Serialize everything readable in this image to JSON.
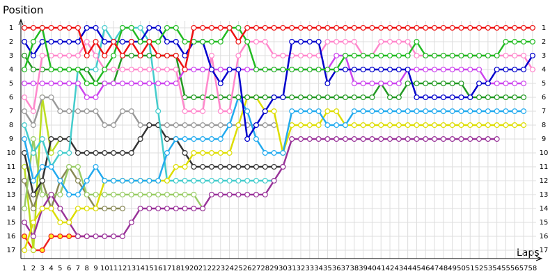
{
  "chart_data": {
    "type": "lap",
    "y_axis_label": "Position",
    "x_axis_label": "Laps",
    "x": [
      1,
      2,
      3,
      4,
      5,
      6,
      7,
      8,
      9,
      10,
      11,
      12,
      13,
      14,
      15,
      16,
      17,
      18,
      19,
      20,
      21,
      22,
      23,
      24,
      25,
      26,
      27,
      28,
      29,
      30,
      31,
      32,
      33,
      34,
      35,
      36,
      37,
      38,
      39,
      40,
      41,
      42,
      43,
      44,
      45,
      46,
      47,
      48,
      49,
      50,
      51,
      52,
      53,
      54,
      55,
      56,
      57,
      58
    ],
    "xlim": [
      0.6,
      58.4
    ],
    "ylim": [
      0.5,
      17.6
    ],
    "y_inverted": true,
    "yticks": [
      1,
      2,
      3,
      4,
      5,
      6,
      7,
      8,
      9,
      10,
      11,
      12,
      13,
      14,
      15,
      16,
      17
    ],
    "grid": true,
    "series": [
      {
        "color": "#ee1111",
        "values": [
          1,
          1,
          1,
          1,
          1,
          1,
          1,
          3,
          2,
          3,
          2,
          3,
          2,
          3,
          2,
          3,
          3,
          3,
          4,
          1,
          1,
          1,
          1,
          1,
          2,
          1,
          1,
          1,
          1,
          1,
          1,
          1,
          1,
          1,
          1,
          1,
          1,
          1,
          1,
          1,
          1,
          1,
          1,
          1,
          1,
          1,
          1,
          1,
          1,
          1,
          1,
          1,
          1,
          1,
          1,
          1,
          1,
          1
        ]
      },
      {
        "color": "#22bb22",
        "values": [
          4,
          2,
          1,
          4,
          4,
          4,
          4,
          5,
          5,
          4,
          3,
          1,
          1,
          2,
          2,
          2,
          1,
          1,
          2,
          2,
          2,
          2,
          2,
          1,
          1,
          2,
          4,
          4,
          4,
          4,
          4,
          4,
          4,
          4,
          4,
          4,
          3,
          3,
          3,
          3,
          3,
          3,
          3,
          3,
          2,
          3,
          3,
          3,
          3,
          3,
          3,
          3,
          3,
          3,
          2,
          2,
          2,
          2
        ]
      },
      {
        "color": "#0000cc",
        "values": [
          2,
          3,
          2,
          2,
          2,
          2,
          2,
          1,
          1,
          2,
          2,
          2,
          2,
          2,
          1,
          1,
          2,
          2,
          3,
          2,
          2,
          4,
          5,
          4,
          4,
          9,
          8,
          7,
          6,
          6,
          2,
          2,
          2,
          2,
          5,
          4,
          4,
          4,
          4,
          4,
          4,
          4,
          4,
          4,
          6,
          6,
          6,
          6,
          6,
          6,
          6,
          5,
          5,
          4,
          4,
          4,
          4,
          3
        ]
      },
      {
        "color": "#ff88cc",
        "values": [
          6,
          7,
          3,
          3,
          3,
          3,
          3,
          2,
          3,
          4,
          4,
          4,
          4,
          4,
          4,
          4,
          4,
          4,
          7,
          7,
          7,
          3,
          7,
          7,
          3,
          2,
          2,
          2,
          3,
          3,
          3,
          3,
          3,
          3,
          2,
          2,
          2,
          2,
          3,
          3,
          2,
          2,
          2,
          2,
          3,
          3,
          3,
          3,
          3,
          3,
          3,
          3,
          3,
          3,
          3,
          3,
          3,
          4
        ]
      },
      {
        "color": "#cc44ee",
        "values": [
          5,
          5,
          5,
          5,
          5,
          5,
          5,
          6,
          6,
          5,
          5,
          5,
          5,
          5,
          5,
          5,
          5,
          5,
          4,
          4,
          4,
          4,
          4,
          4,
          4,
          4,
          4,
          4,
          4,
          4,
          4,
          4,
          4,
          4,
          4,
          3,
          3,
          5,
          5,
          5,
          5,
          5,
          5,
          4,
          4,
          4,
          4,
          4,
          4,
          4,
          4,
          4,
          5,
          5,
          5,
          5,
          5,
          null
        ]
      },
      {
        "color": "#229922",
        "values": [
          3,
          4,
          4,
          4,
          4,
          4,
          4,
          4,
          5,
          5,
          5,
          3,
          3,
          3,
          3,
          3,
          3,
          3,
          6,
          6,
          6,
          6,
          6,
          6,
          6,
          6,
          6,
          6,
          6,
          6,
          6,
          6,
          6,
          6,
          6,
          6,
          6,
          6,
          6,
          6,
          5,
          6,
          6,
          5,
          5,
          5,
          5,
          5,
          5,
          5,
          6,
          6,
          6,
          6,
          6,
          6,
          6,
          null
        ]
      },
      {
        "color": "#22aaee",
        "values": [
          9,
          12,
          11,
          11,
          12,
          13,
          13,
          12,
          11,
          12,
          12,
          12,
          12,
          12,
          12,
          12,
          10,
          9,
          9,
          9,
          9,
          9,
          9,
          8,
          6,
          7,
          9,
          10,
          10,
          10,
          7,
          7,
          7,
          7,
          8,
          8,
          8,
          7,
          7,
          7,
          7,
          7,
          7,
          7,
          7,
          7,
          7,
          7,
          7,
          7,
          7,
          7,
          7,
          7,
          7,
          7,
          7,
          null
        ]
      },
      {
        "color": "#dddd00",
        "values": [
          17,
          15,
          14,
          14,
          15,
          15,
          14,
          14,
          14,
          12,
          12,
          12,
          12,
          12,
          12,
          12,
          12,
          11,
          11,
          10,
          10,
          10,
          10,
          10,
          8,
          6,
          6,
          7,
          7,
          10,
          8,
          8,
          8,
          8,
          7,
          7,
          8,
          8,
          8,
          8,
          8,
          8,
          8,
          8,
          8,
          8,
          8,
          8,
          8,
          8,
          8,
          8,
          8,
          8,
          8,
          8,
          8,
          null
        ]
      },
      {
        "color": "#993399",
        "values": [
          15,
          16,
          14,
          13,
          14,
          15,
          16,
          16,
          16,
          16,
          16,
          16,
          15,
          14,
          14,
          14,
          14,
          14,
          14,
          14,
          14,
          13,
          13,
          13,
          13,
          13,
          13,
          13,
          12,
          11,
          9,
          9,
          9,
          9,
          9,
          9,
          9,
          9,
          9,
          9,
          9,
          9,
          9,
          9,
          9,
          9,
          9,
          9,
          9,
          9,
          9,
          9,
          9,
          9,
          null,
          null,
          null,
          null
        ]
      },
      {
        "color": "#44cccc",
        "values": [
          8,
          10,
          9,
          11,
          10,
          10,
          4,
          4,
          4,
          1,
          2,
          1,
          1,
          1,
          2,
          7,
          12,
          12,
          12,
          12,
          12,
          12,
          12,
          12,
          12,
          12,
          12,
          12,
          12,
          null,
          null,
          null,
          null,
          null,
          null,
          null,
          null,
          null,
          null,
          null,
          null,
          null,
          null,
          null,
          null,
          null,
          null,
          null,
          null,
          null,
          null,
          null,
          null,
          null,
          null,
          null,
          null,
          null
        ]
      },
      {
        "color": "#333333",
        "values": [
          10,
          13,
          12,
          9,
          9,
          9,
          10,
          10,
          10,
          10,
          10,
          10,
          10,
          9,
          8,
          8,
          9,
          9,
          10,
          11,
          11,
          11,
          11,
          11,
          11,
          11,
          11,
          11,
          11,
          11,
          null,
          null,
          null,
          null,
          null,
          null,
          null,
          null,
          null,
          null,
          null,
          null,
          null,
          null,
          null,
          null,
          null,
          null,
          null,
          null,
          null,
          null,
          null,
          null,
          null,
          null,
          null,
          null
        ]
      },
      {
        "color": "#999999",
        "values": [
          7,
          8,
          6,
          6,
          7,
          7,
          7,
          7,
          7,
          8,
          8,
          7,
          7,
          8,
          8,
          8,
          8,
          8,
          8,
          8,
          8,
          8,
          8,
          8,
          8,
          8,
          8,
          8,
          8,
          null,
          null,
          null,
          null,
          null,
          null,
          null,
          null,
          null,
          null,
          null,
          null,
          null,
          null,
          null,
          null,
          null,
          null,
          null,
          null,
          null,
          null,
          null,
          null,
          null,
          null,
          null,
          null,
          null
        ]
      },
      {
        "color": "#99cc66",
        "values": [
          14,
          9,
          13,
          13,
          13,
          11,
          11,
          13,
          13,
          13,
          13,
          13,
          13,
          13,
          13,
          13,
          13,
          13,
          13,
          13,
          14,
          null,
          null,
          null,
          null,
          null,
          null,
          null,
          null,
          null,
          null,
          null,
          null,
          null,
          null,
          null,
          null,
          null,
          null,
          null,
          null,
          null,
          null,
          null,
          null,
          null,
          null,
          null,
          null,
          null,
          null,
          null,
          null,
          null,
          null,
          null,
          null,
          null
        ]
      },
      {
        "color": "#888855",
        "values": [
          12,
          14,
          12,
          14,
          12,
          11,
          12,
          13,
          14,
          14,
          14,
          14,
          null,
          null,
          null,
          null,
          null,
          null,
          null,
          null,
          null,
          null,
          null,
          null,
          null,
          null,
          null,
          null,
          null,
          null,
          null,
          null,
          null,
          null,
          null,
          null,
          null,
          null,
          null,
          null,
          null,
          null,
          null,
          null,
          null,
          null,
          null,
          null,
          null,
          null,
          null,
          null,
          null,
          null,
          null,
          null,
          null,
          null
        ]
      },
      {
        "color": "#bbdd22",
        "values": [
          11,
          17,
          6,
          10,
          9,
          null,
          null,
          null,
          null,
          null,
          null,
          null,
          null,
          null,
          null,
          null,
          null,
          null,
          null,
          null,
          null,
          null,
          null,
          null,
          null,
          null,
          null,
          null,
          null,
          null,
          null,
          null,
          null,
          null,
          null,
          null,
          null,
          null,
          null,
          null,
          null,
          null,
          null,
          null,
          null,
          null,
          null,
          null,
          null,
          null,
          null,
          null,
          null,
          null,
          null,
          null,
          null,
          null
        ]
      },
      {
        "color": "#ee2222",
        "marker_fill": "#ffee22",
        "values": [
          16,
          17,
          17,
          16,
          16,
          16,
          16,
          16,
          null,
          null,
          null,
          null,
          null,
          null,
          null,
          null,
          null,
          null,
          null,
          null,
          null,
          null,
          null,
          null,
          null,
          null,
          null,
          null,
          null,
          null,
          null,
          null,
          null,
          null,
          null,
          null,
          null,
          null,
          null,
          null,
          null,
          null,
          null,
          null,
          null,
          null,
          null,
          null,
          null,
          null,
          null,
          null,
          null,
          null,
          null,
          null,
          null,
          null
        ]
      }
    ]
  }
}
